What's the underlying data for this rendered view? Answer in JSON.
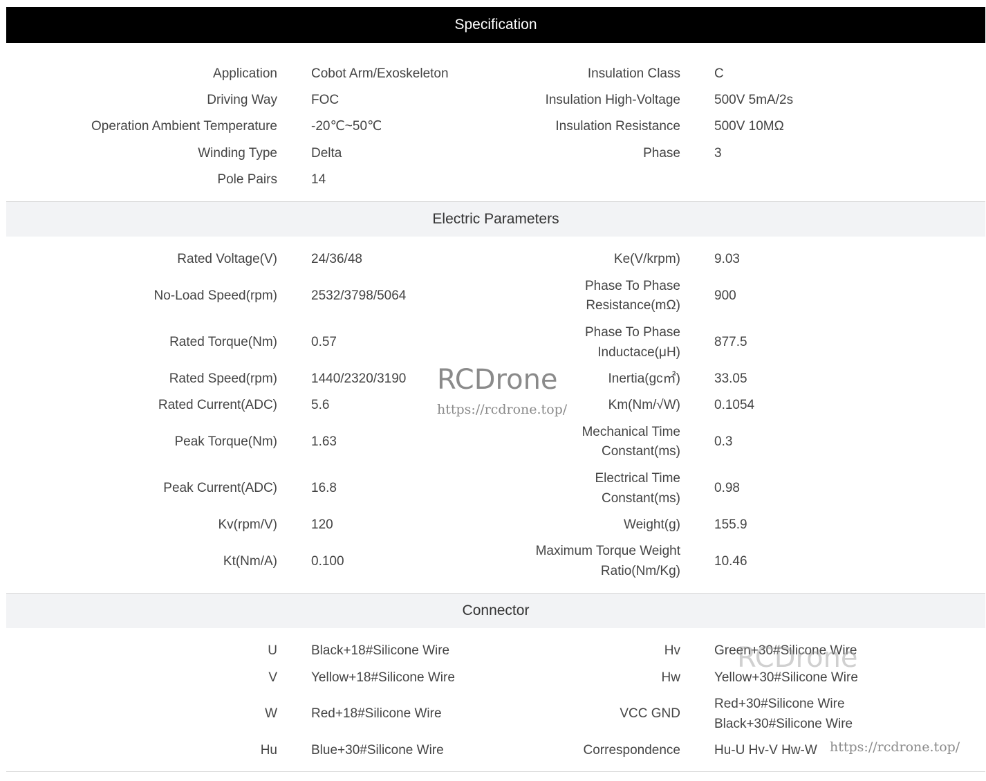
{
  "spec": {
    "title": "Specification",
    "left": [
      {
        "label": "Application",
        "value": "Cobot Arm/Exoskeleton"
      },
      {
        "label": "Driving Way",
        "value": "FOC"
      },
      {
        "label": "Operation Ambient Temperature",
        "value": "-20℃~50℃"
      },
      {
        "label": "Winding Type",
        "value": "Delta"
      },
      {
        "label": "Pole Pairs",
        "value": "14"
      }
    ],
    "right": [
      {
        "label": "Insulation Class",
        "value": "C"
      },
      {
        "label": "Insulation High-Voltage",
        "value": "500V 5mA/2s"
      },
      {
        "label": "Insulation Resistance",
        "value": "500V 10MΩ"
      },
      {
        "label": "Phase",
        "value": "3"
      }
    ]
  },
  "electric": {
    "title": "Electric Parameters",
    "left": [
      {
        "label": "Rated Voltage(V)",
        "value": "24/36/48"
      },
      {
        "label": "No-Load Speed(rpm)",
        "value": "2532/3798/5064"
      },
      {
        "label": "Rated Torque(Nm)",
        "value": "0.57"
      },
      {
        "label": "Rated Speed(rpm)",
        "value": "1440/2320/3190"
      },
      {
        "label": "Rated Current(ADC)",
        "value": "5.6"
      },
      {
        "label": "Peak Torque(Nm)",
        "value": "1.63"
      },
      {
        "label": "Peak Current(ADC)",
        "value": "16.8"
      },
      {
        "label": "Kv(rpm/V)",
        "value": "120"
      },
      {
        "label": "Kt(Nm/A)",
        "value": "0.100"
      }
    ],
    "right": [
      {
        "label": "Ke(V/krpm)",
        "value": "9.03"
      },
      {
        "label": "Phase To Phase",
        "label2": "Resistance(mΩ)",
        "value": "900"
      },
      {
        "label": "Phase To Phase",
        "label2": "Inductace(μH)",
        "value": "877.5"
      },
      {
        "label": "Inertia(gc㎡)",
        "value": "33.05"
      },
      {
        "label": "Km(Nm/√W)",
        "value": "0.1054"
      },
      {
        "label": "Mechanical Time",
        "label2": "Constant(ms)",
        "value": "0.3"
      },
      {
        "label": "Electrical Time",
        "label2": "Constant(ms)",
        "value": "0.98"
      },
      {
        "label": "Weight(g)",
        "value": "155.9"
      },
      {
        "label": "Maximum Torque Weight",
        "label2": "Ratio(Nm/Kg)",
        "value": "10.46"
      }
    ]
  },
  "connector": {
    "title": "Connector",
    "left": [
      {
        "label": "U",
        "value": "Black+18#Silicone Wire"
      },
      {
        "label": "V",
        "value": "Yellow+18#Silicone Wire"
      },
      {
        "label": "W",
        "value": "Red+18#Silicone Wire"
      },
      {
        "label": "Hu",
        "value": "Blue+30#Silicone Wire"
      }
    ],
    "right": [
      {
        "label": "Hv",
        "value": "Green+30#Silicone Wire"
      },
      {
        "label": "Hw",
        "value": "Yellow+30#Silicone Wire"
      },
      {
        "label": "VCC GND",
        "value": "Red+30#Silicone Wire",
        "value2": "Black+30#Silicone Wire"
      },
      {
        "label": "Correspondence",
        "value": "Hu-U Hv-V Hw-W"
      }
    ]
  },
  "watermark": {
    "brand": "RCDrone",
    "url": "https://rcdrone.top/"
  }
}
